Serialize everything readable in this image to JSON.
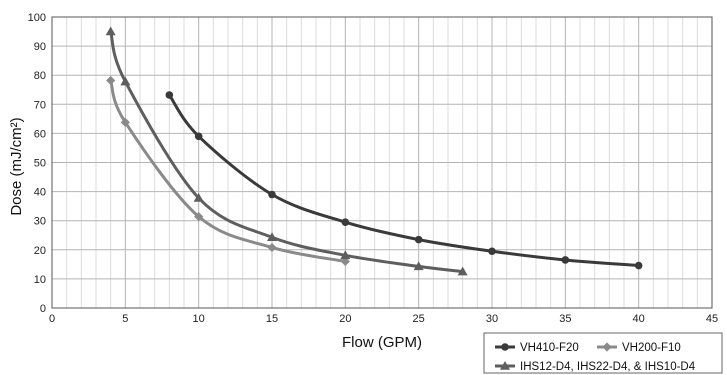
{
  "chart_data": {
    "type": "line",
    "title": "",
    "xlabel": "Flow (GPM)",
    "ylabel": "Dose (mJ/cm²)",
    "xlim": [
      0,
      45
    ],
    "ylim": [
      0,
      100
    ],
    "x_ticks": [
      0,
      5,
      10,
      15,
      20,
      25,
      30,
      35,
      40,
      45
    ],
    "y_ticks": [
      0,
      10,
      20,
      30,
      40,
      50,
      60,
      70,
      80,
      90,
      100
    ],
    "minor_x_step": 1,
    "grid": true,
    "legend_position": "bottom-right",
    "series": [
      {
        "name": "VH410-F20",
        "marker": "circle",
        "color": "#3a3a3a",
        "points": [
          [
            8,
            73.2
          ],
          [
            10,
            59
          ],
          [
            15,
            39
          ],
          [
            20,
            29.5
          ],
          [
            25,
            23.5
          ],
          [
            30,
            19.5
          ],
          [
            35,
            16.5
          ],
          [
            40,
            14.6
          ]
        ]
      },
      {
        "name": "VH200-F10",
        "marker": "diamond",
        "color": "#8a8a8a",
        "points": [
          [
            4,
            78.2
          ],
          [
            5,
            63.8
          ],
          [
            10,
            31.4
          ],
          [
            15,
            20.8
          ],
          [
            20,
            16
          ]
        ]
      },
      {
        "name": "IHS12-D4, IHS22-D4, & IHS10-D4",
        "marker": "triangle",
        "color": "#5e5e5e",
        "points": [
          [
            4,
            95
          ],
          [
            5,
            77.8
          ],
          [
            10,
            37.8
          ],
          [
            15,
            24.3
          ],
          [
            20,
            18.1
          ],
          [
            25,
            14.3
          ],
          [
            28,
            12.5
          ]
        ]
      }
    ]
  }
}
